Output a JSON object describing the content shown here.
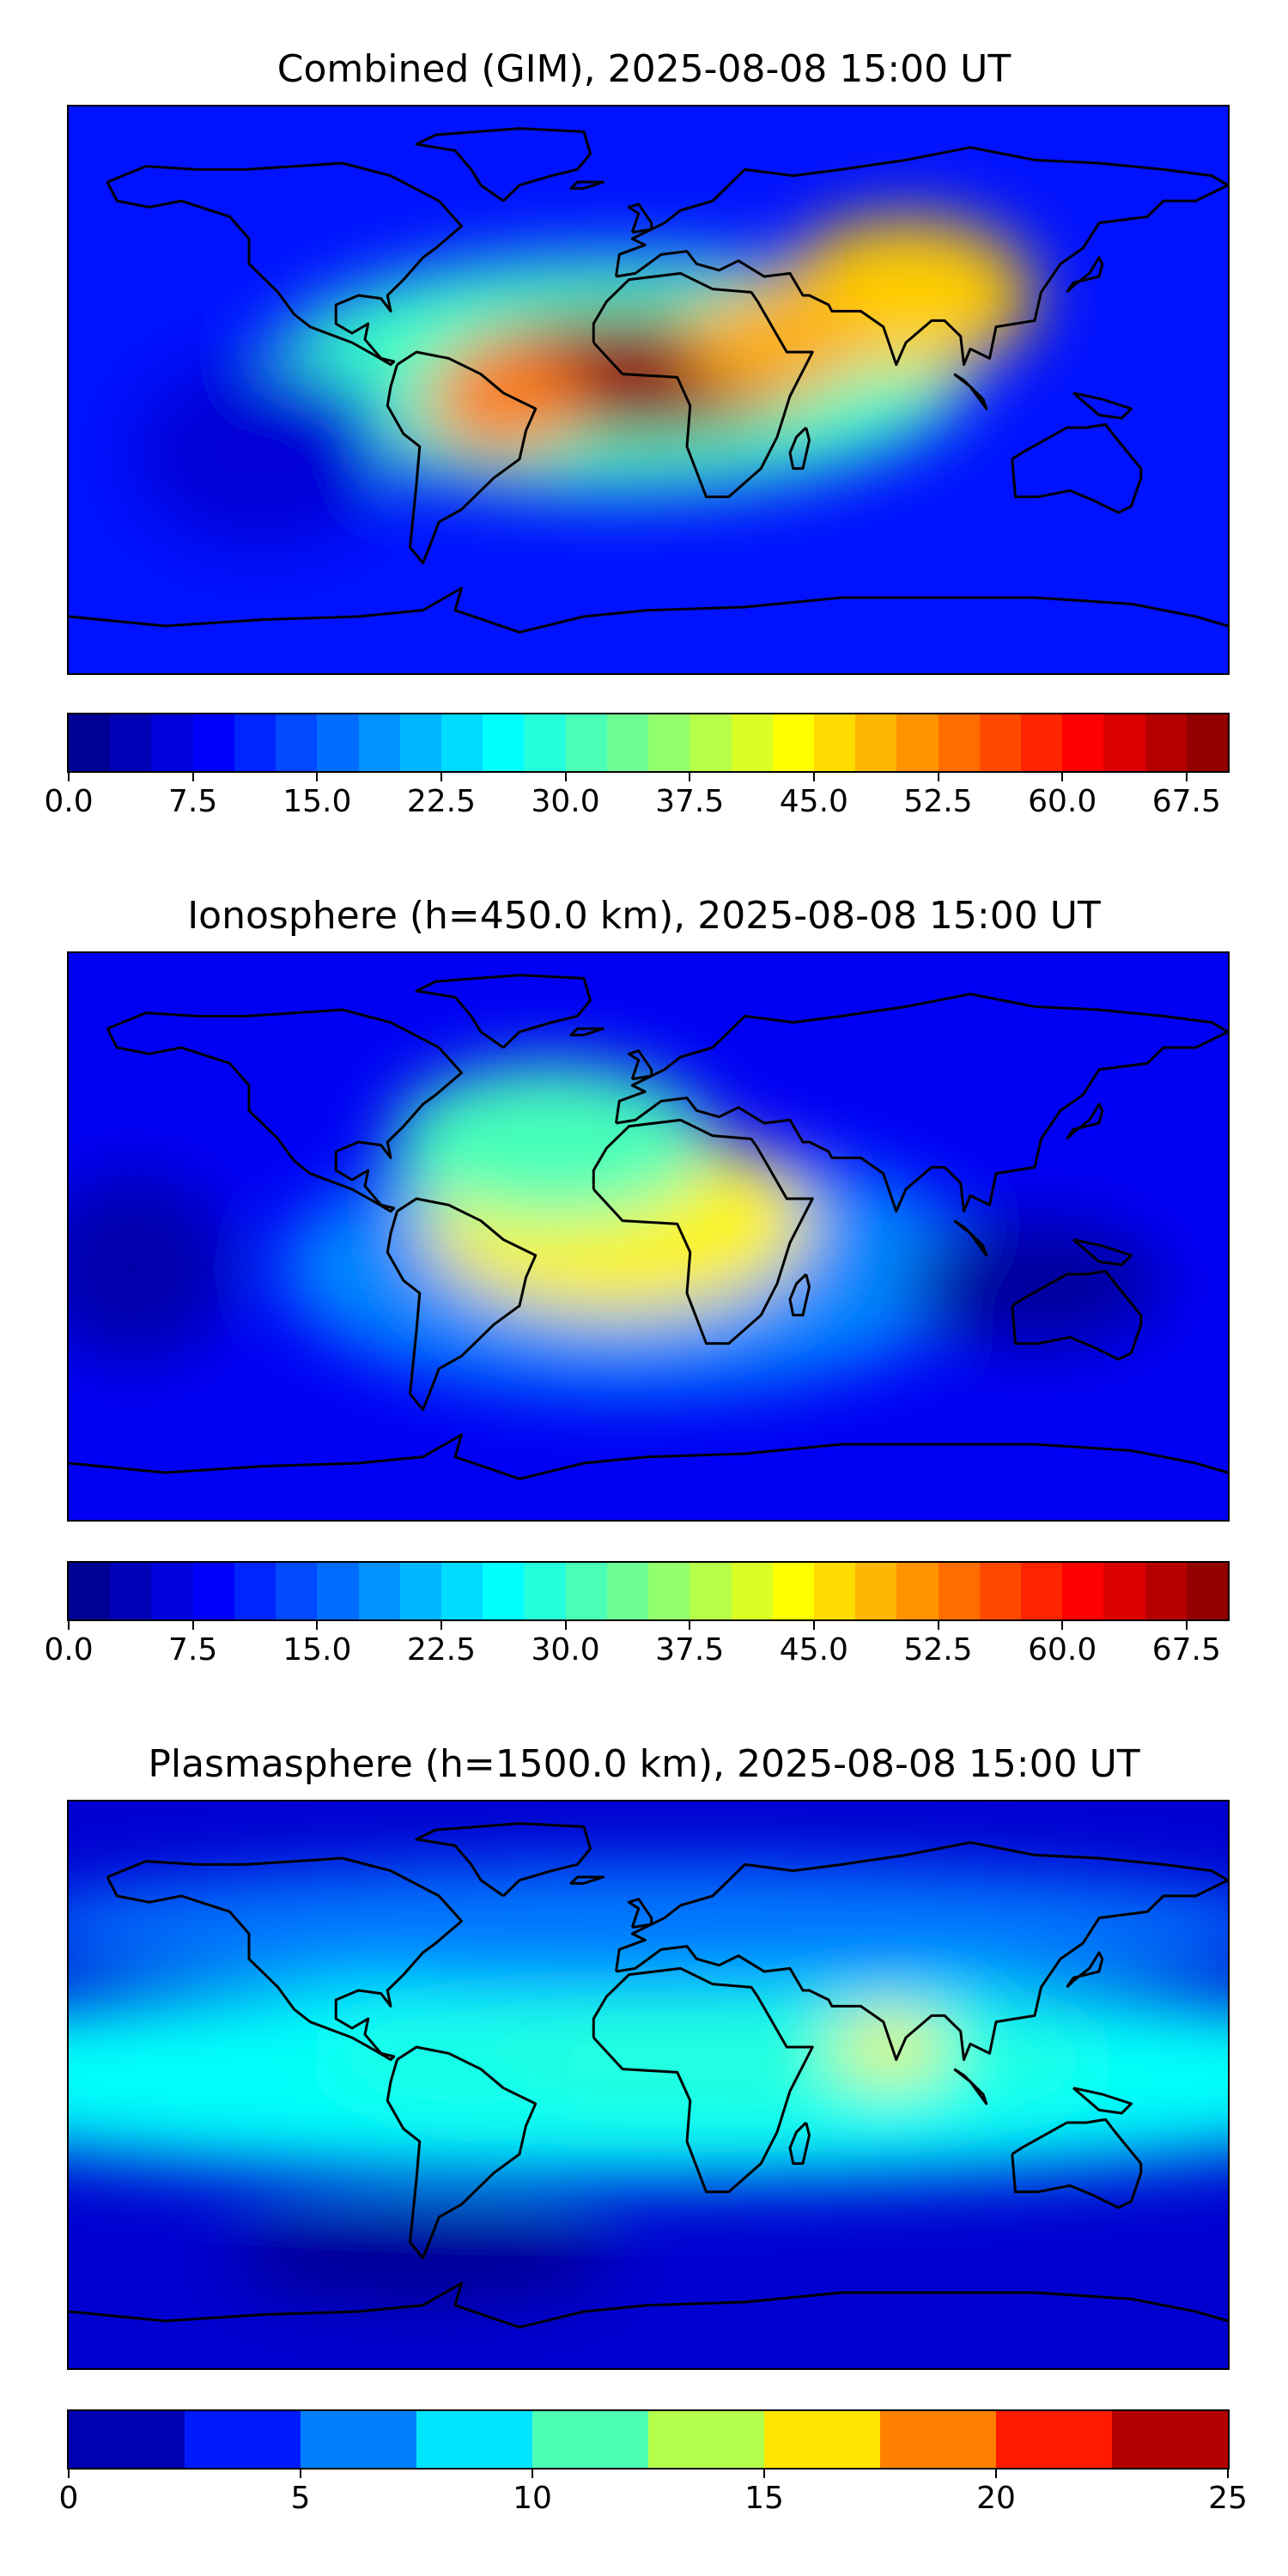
{
  "panels": [
    {
      "id": "combined",
      "title": "Combined (GIM), 2025-08-08 15:00 UT",
      "colorbar": {
        "min": 0,
        "max": 70,
        "levels": 28,
        "tick_values": [
          0,
          7.5,
          15,
          22.5,
          30,
          37.5,
          45,
          52.5,
          60,
          67.5
        ],
        "tick_labels": [
          "0.0",
          "7.5",
          "15.0",
          "22.5",
          "30.0",
          "37.5",
          "45.0",
          "52.5",
          "60.0",
          "67.5"
        ]
      },
      "field": {
        "background": 10,
        "blobs": [
          {
            "lon": -5,
            "lat": 5,
            "rx": 58,
            "ry": 20,
            "value": 52
          },
          {
            "lon": -45,
            "lat": -3,
            "rx": 25,
            "ry": 18,
            "value": 10
          },
          {
            "lon": 40,
            "lat": 15,
            "rx": 28,
            "ry": 18,
            "value": 10
          },
          {
            "lon": -10,
            "lat": 5,
            "rx": 110,
            "ry": 38,
            "value": 20
          },
          {
            "lon": 80,
            "lat": 30,
            "rx": 40,
            "ry": 25,
            "value": 12
          },
          {
            "lon": -120,
            "lat": -20,
            "rx": 40,
            "ry": 30,
            "value": -4
          }
        ]
      }
    },
    {
      "id": "ionosphere",
      "title": "Ionosphere  (h=450.0 km), 2025-08-08 15:00 UT",
      "colorbar": {
        "min": 0,
        "max": 70,
        "levels": 28,
        "tick_values": [
          0,
          7.5,
          15,
          22.5,
          30,
          37.5,
          45,
          52.5,
          60,
          67.5
        ],
        "tick_labels": [
          "0.0",
          "7.5",
          "15.0",
          "22.5",
          "30.0",
          "37.5",
          "45.0",
          "52.5",
          "60.0",
          "67.5"
        ]
      },
      "field": {
        "background": 8,
        "blobs": [
          {
            "lon": -10,
            "lat": 5,
            "rx": 60,
            "ry": 30,
            "value": 33
          },
          {
            "lon": -30,
            "lat": 30,
            "rx": 50,
            "ry": 25,
            "value": 8
          },
          {
            "lon": -5,
            "lat": -10,
            "rx": 110,
            "ry": 40,
            "value": 10
          },
          {
            "lon": 120,
            "lat": -15,
            "rx": 40,
            "ry": 20,
            "value": -6
          },
          {
            "lon": -160,
            "lat": -10,
            "rx": 30,
            "ry": 30,
            "value": -5
          }
        ]
      }
    },
    {
      "id": "plasmasphere",
      "title": "Plasmasphere (h=1500.0 km), 2025-08-08 15:00 UT",
      "colorbar": {
        "min": 0,
        "max": 25,
        "levels": 10,
        "tick_values": [
          0,
          5,
          10,
          15,
          20,
          25
        ],
        "tick_labels": [
          "0",
          "5",
          "10",
          "15",
          "20",
          "25"
        ]
      },
      "field": {
        "background": 2,
        "blobs": [
          {
            "lon": 0,
            "lat": 2,
            "rx": 260,
            "ry": 32,
            "value": 7.5
          },
          {
            "lon": 20,
            "lat": 8,
            "rx": 120,
            "ry": 18,
            "value": 5
          },
          {
            "lon": 75,
            "lat": 12,
            "rx": 18,
            "ry": 9,
            "value": 8
          },
          {
            "lon": -55,
            "lat": 0,
            "rx": 25,
            "ry": 12,
            "value": 3
          },
          {
            "lon": 0,
            "lat": 50,
            "rx": 200,
            "ry": 20,
            "value": 1.5
          },
          {
            "lon": -70,
            "lat": -55,
            "rx": 60,
            "ry": 15,
            "value": -1.5
          }
        ]
      }
    }
  ]
}
